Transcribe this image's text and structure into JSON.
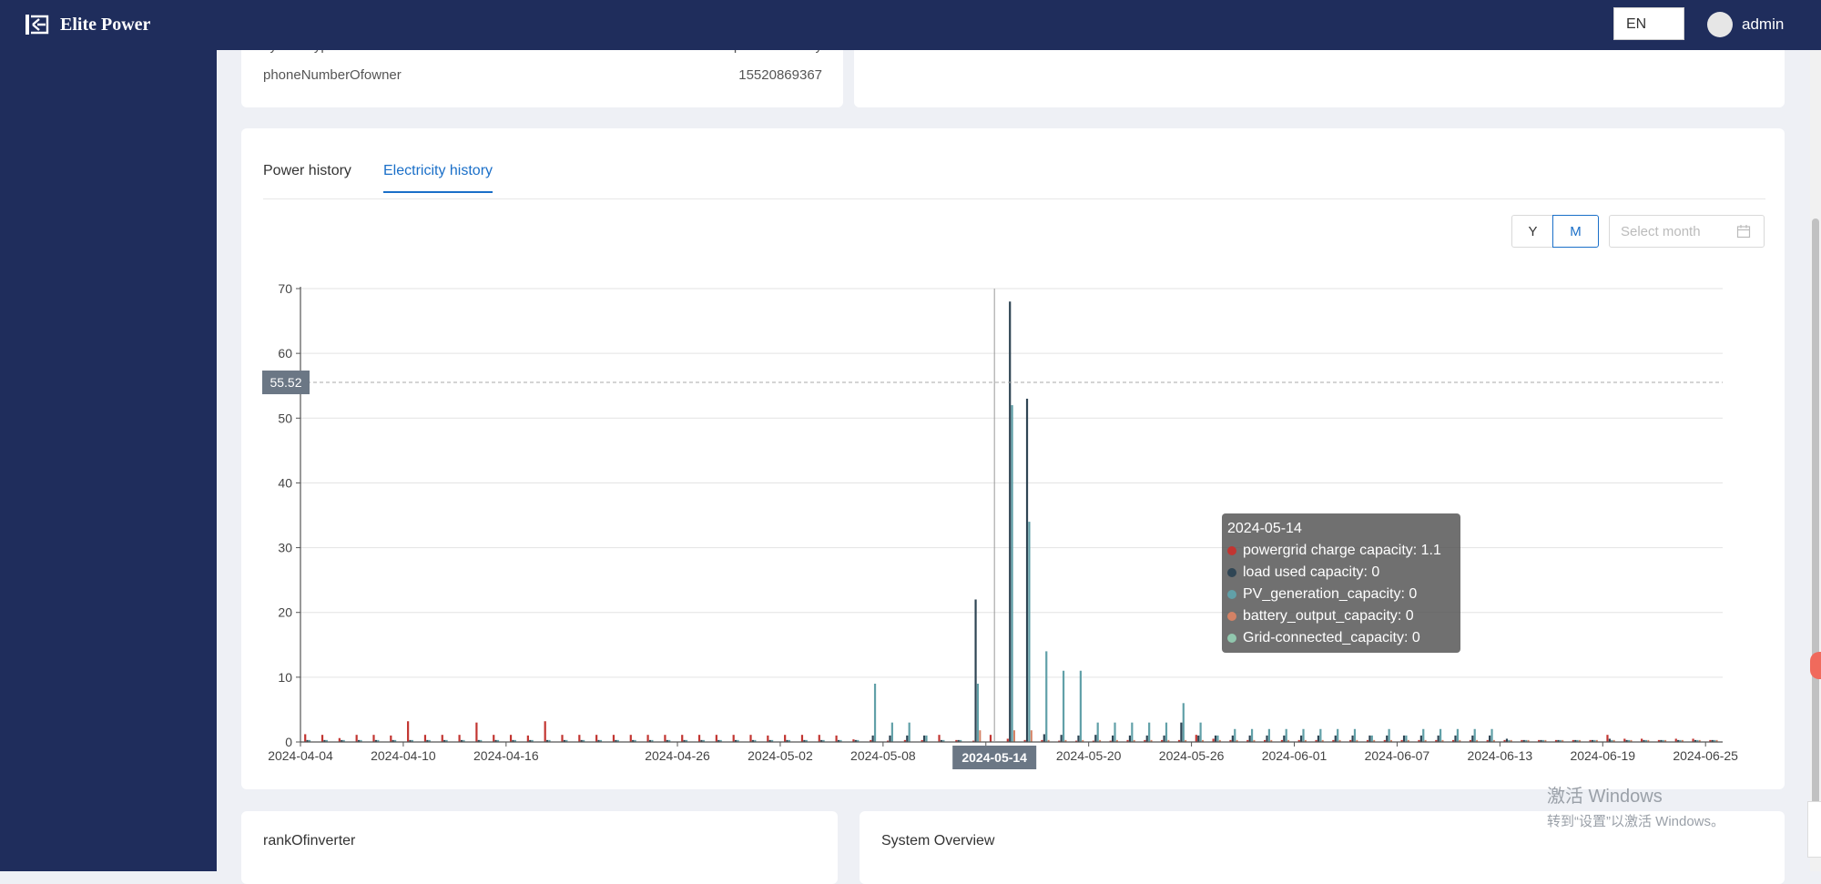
{
  "app": {
    "title": "Elite Power",
    "language": "EN",
    "user": "admin"
  },
  "info": {
    "rows": [
      {
        "label": "systemType",
        "value": "PV + Grid + Consumption + Battery"
      },
      {
        "label": "phoneNumberOfowner",
        "value": "15520869367"
      }
    ]
  },
  "history": {
    "tabs": [
      "Power history",
      "Electricity history"
    ],
    "active_tab": "Electricity history",
    "range_buttons": [
      "Y",
      "M"
    ],
    "selected_range": "M",
    "month_placeholder": "Select month"
  },
  "chart_data": {
    "type": "bar",
    "ylim": [
      0,
      70
    ],
    "yticks": [
      "0",
      "10",
      "20",
      "30",
      "40",
      "50",
      "60",
      "70"
    ],
    "xticks": [
      "2024-04-04",
      "2024-04-10",
      "2024-04-16",
      "2024-04-26",
      "2024-05-02",
      "2024-05-08",
      "2024-05-14",
      "2024-05-20",
      "2024-05-26",
      "2024-06-01",
      "2024-06-07",
      "2024-06-13",
      "2024-06-19",
      "2024-06-25"
    ],
    "categories": [
      "2024-04-04",
      "2024-04-05",
      "2024-04-06",
      "2024-04-07",
      "2024-04-08",
      "2024-04-09",
      "2024-04-10",
      "2024-04-11",
      "2024-04-12",
      "2024-04-13",
      "2024-04-14",
      "2024-04-15",
      "2024-04-16",
      "2024-04-17",
      "2024-04-18",
      "2024-04-19",
      "2024-04-20",
      "2024-04-21",
      "2024-04-22",
      "2024-04-23",
      "2024-04-24",
      "2024-04-25",
      "2024-04-26",
      "2024-04-27",
      "2024-04-28",
      "2024-04-29",
      "2024-04-30",
      "2024-05-01",
      "2024-05-02",
      "2024-05-03",
      "2024-05-04",
      "2024-05-05",
      "2024-05-06",
      "2024-05-07",
      "2024-05-08",
      "2024-05-09",
      "2024-05-10",
      "2024-05-11",
      "2024-05-12",
      "2024-05-13",
      "2024-05-14",
      "2024-05-15",
      "2024-05-16",
      "2024-05-17",
      "2024-05-18",
      "2024-05-19",
      "2024-05-20",
      "2024-05-21",
      "2024-05-22",
      "2024-05-23",
      "2024-05-24",
      "2024-05-25",
      "2024-05-26",
      "2024-05-27",
      "2024-05-28",
      "2024-05-29",
      "2024-05-30",
      "2024-05-31",
      "2024-06-01",
      "2024-06-02",
      "2024-06-03",
      "2024-06-04",
      "2024-06-05",
      "2024-06-06",
      "2024-06-07",
      "2024-06-08",
      "2024-06-09",
      "2024-06-10",
      "2024-06-11",
      "2024-06-12",
      "2024-06-13",
      "2024-06-14",
      "2024-06-15",
      "2024-06-16",
      "2024-06-17",
      "2024-06-18",
      "2024-06-19",
      "2024-06-20",
      "2024-06-21",
      "2024-06-22",
      "2024-06-23",
      "2024-06-24",
      "2024-06-25"
    ],
    "series": [
      {
        "name": "powergrid charge capacity",
        "color": "#c23531",
        "values": [
          1.2,
          1.1,
          0.6,
          1.1,
          1.1,
          1.0,
          3.2,
          1.1,
          1.1,
          1.1,
          3.0,
          1.1,
          1.1,
          1.0,
          3.2,
          1.1,
          1.1,
          1.1,
          1.1,
          1.1,
          1.1,
          1.1,
          1.1,
          1.1,
          1.1,
          1.1,
          1.1,
          1.0,
          1.1,
          1.1,
          1.1,
          1.0,
          0.4,
          0.3,
          0.2,
          0.3,
          0.3,
          1.1,
          0.3,
          0.2,
          1.1,
          0.5,
          0.3,
          0.3,
          0.2,
          0.2,
          0.2,
          0.2,
          0.3,
          0.3,
          0.3,
          0.3,
          1.1,
          0.5,
          0.3,
          0.3,
          0.3,
          0.3,
          0.3,
          0.3,
          0.3,
          0.3,
          0.3,
          0.3,
          0.3,
          0.3,
          0.3,
          0.3,
          0.3,
          0.3,
          0.3,
          0.3,
          0.3,
          0.3,
          0.3,
          0.3,
          1.1,
          0.5,
          0.5,
          0.3,
          0.5,
          0.5,
          0.3
        ]
      },
      {
        "name": "load used capacity",
        "color": "#2f4554",
        "values": [
          0.3,
          0.3,
          0.3,
          0.3,
          0.3,
          0.3,
          0.3,
          0.3,
          0.3,
          0.3,
          0.3,
          0.3,
          0.3,
          0.3,
          0.3,
          0.3,
          0.3,
          0.3,
          0.3,
          0.3,
          0.3,
          0.3,
          0.3,
          0.3,
          0.3,
          0.3,
          0.3,
          0.3,
          0.3,
          0.3,
          0.3,
          0.3,
          0.3,
          1.0,
          1.0,
          1.0,
          1.0,
          0.3,
          0.3,
          22,
          0,
          68,
          53,
          1.2,
          1.1,
          1.0,
          1.1,
          1.0,
          1.0,
          1.0,
          1.0,
          3.0,
          1.0,
          1.0,
          1.0,
          1.0,
          1.0,
          1.0,
          1.0,
          1.0,
          1.0,
          1.0,
          1.0,
          1.0,
          1.0,
          1.0,
          1.0,
          1.0,
          1.0,
          1.0,
          0.5,
          0.3,
          0.3,
          0.3,
          0.3,
          0.3,
          0.5,
          0.3,
          0.3,
          0.3,
          0.3,
          0.3,
          0.3
        ]
      },
      {
        "name": "PV_generation_capacity",
        "color": "#61a0a8",
        "values": [
          0.3,
          0.3,
          0.3,
          0.3,
          0.3,
          0.3,
          0.3,
          0.3,
          0.3,
          0.3,
          0.3,
          0.3,
          0.3,
          0.3,
          0.3,
          0.3,
          0.3,
          0.3,
          0.3,
          0.3,
          0.3,
          0.3,
          0.3,
          0.3,
          0.3,
          0.3,
          0.3,
          0.3,
          0.3,
          0.3,
          0.3,
          0.3,
          0.3,
          9.0,
          3.0,
          3.0,
          1.0,
          0.3,
          0.3,
          9.0,
          0,
          52,
          34,
          14,
          11,
          11,
          3.0,
          3.0,
          3.0,
          3.0,
          3.0,
          6.0,
          3.0,
          1.0,
          2.0,
          2.0,
          2.0,
          2.0,
          2.0,
          2.0,
          2.0,
          2.0,
          1.0,
          2.0,
          1.0,
          2.0,
          2.0,
          2.0,
          2.0,
          2.0,
          0.3,
          0.3,
          0.3,
          0.3,
          0.3,
          0.3,
          0.3,
          0.3,
          0.3,
          0.3,
          0.3,
          0.3,
          0.3
        ]
      },
      {
        "name": "battery_output_capacity",
        "color": "#d48265",
        "values": [
          0,
          0,
          0,
          0,
          0,
          0,
          0,
          0,
          0,
          0,
          0,
          0,
          0,
          0,
          0,
          0,
          0,
          0,
          0,
          0,
          0,
          0,
          0,
          0,
          0,
          0,
          0,
          0,
          0,
          0,
          0,
          0,
          0,
          0,
          0,
          0,
          0,
          0,
          0,
          1.8,
          0,
          1.8,
          1.8,
          0.3,
          0.3,
          0.3,
          0.3,
          0.3,
          0.3,
          0.3,
          0.3,
          0.3,
          0.3,
          0.3,
          0.3,
          0.3,
          0.3,
          0.3,
          0.3,
          0.3,
          0.3,
          0.3,
          0.3,
          0.3,
          0.3,
          0.3,
          0.3,
          0.3,
          0.3,
          0.3,
          0.3,
          0.3,
          0.3,
          0.3,
          0.3,
          0.3,
          0.3,
          0.3,
          0.3,
          0.3,
          0.3,
          0.3,
          0.3
        ]
      },
      {
        "name": "Grid-connected_capacity",
        "color": "#91c7ae",
        "values": [
          0,
          0,
          0,
          0,
          0,
          0,
          0,
          0,
          0,
          0,
          0,
          0,
          0,
          0,
          0,
          0,
          0,
          0,
          0,
          0,
          0,
          0,
          0,
          0,
          0,
          0,
          0,
          0,
          0,
          0,
          0,
          0,
          0,
          0,
          0,
          0,
          0,
          0,
          0,
          0,
          0,
          0,
          0,
          0,
          0,
          0,
          0,
          0,
          0,
          0,
          0,
          0,
          0,
          0,
          0,
          0,
          0,
          0,
          0,
          0,
          0,
          0,
          0,
          0,
          0,
          0,
          0,
          0,
          0,
          0,
          0,
          0,
          0,
          0,
          0,
          0,
          0,
          0,
          0,
          0,
          0,
          0,
          0
        ]
      }
    ],
    "crosshair": {
      "x": "2024-05-14",
      "y_label": "55.52"
    },
    "tooltip": {
      "title": "2024-05-14",
      "items": [
        {
          "label": "powergrid charge capacity: 1.1",
          "color": "#c23531"
        },
        {
          "label": "load used capacity: 0",
          "color": "#2f4554"
        },
        {
          "label": "PV_generation_capacity: 0",
          "color": "#61a0a8"
        },
        {
          "label": "battery_output_capacity: 0",
          "color": "#d48265"
        },
        {
          "label": "Grid-connected_capacity: 0",
          "color": "#91c7ae"
        }
      ]
    }
  },
  "sections": {
    "rank": "rankOfinverter",
    "overview": "System Overview"
  },
  "watermark": {
    "line1": "激活 Windows",
    "line2": "转到“设置”以激活 Windows。"
  }
}
